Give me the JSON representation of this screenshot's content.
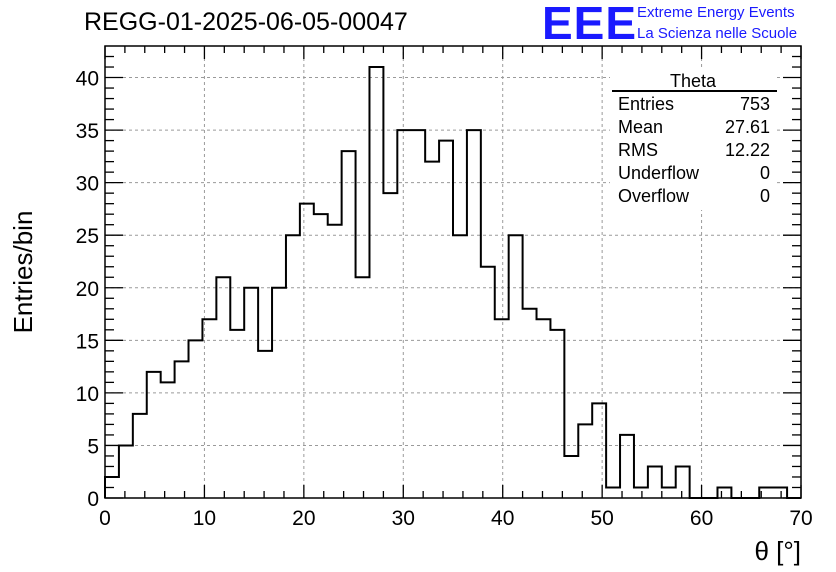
{
  "page": {
    "title": "REGG-01-2025-06-05-00047"
  },
  "logo": {
    "letters": "EEE",
    "line1": "Extreme Energy Events",
    "line2": "La Scienza nelle Scuole",
    "color": "#1a1aff"
  },
  "stats_box": {
    "name": "Theta",
    "rows": [
      {
        "label": "Entries",
        "value": "753"
      },
      {
        "label": "Mean",
        "value": "27.61"
      },
      {
        "label": "RMS",
        "value": "12.22"
      },
      {
        "label": "Underflow",
        "value": "0"
      },
      {
        "label": "Overflow",
        "value": "0"
      }
    ]
  },
  "chart_data": {
    "type": "histogram",
    "title": "REGG-01-2025-06-05-00047",
    "xlabel": "θ [°]",
    "ylabel": "Entries/bin",
    "xlim": [
      0,
      70
    ],
    "ylim": [
      0,
      43
    ],
    "bin_width": 1.4,
    "x_ticks": [
      0,
      10,
      20,
      30,
      40,
      50,
      60,
      70
    ],
    "y_ticks": [
      0,
      5,
      10,
      15,
      20,
      25,
      30,
      35,
      40
    ],
    "grid": true,
    "line_color": "#000000",
    "values": [
      2,
      5,
      8,
      12,
      11,
      13,
      15,
      17,
      21,
      16,
      20,
      14,
      20,
      25,
      28,
      27,
      26,
      33,
      21,
      41,
      29,
      35,
      35,
      32,
      34,
      25,
      35,
      22,
      17,
      25,
      18,
      17,
      16,
      4,
      7,
      9,
      1,
      6,
      1,
      3,
      1,
      3,
      0,
      0,
      1,
      0,
      0,
      1,
      1,
      0
    ]
  }
}
